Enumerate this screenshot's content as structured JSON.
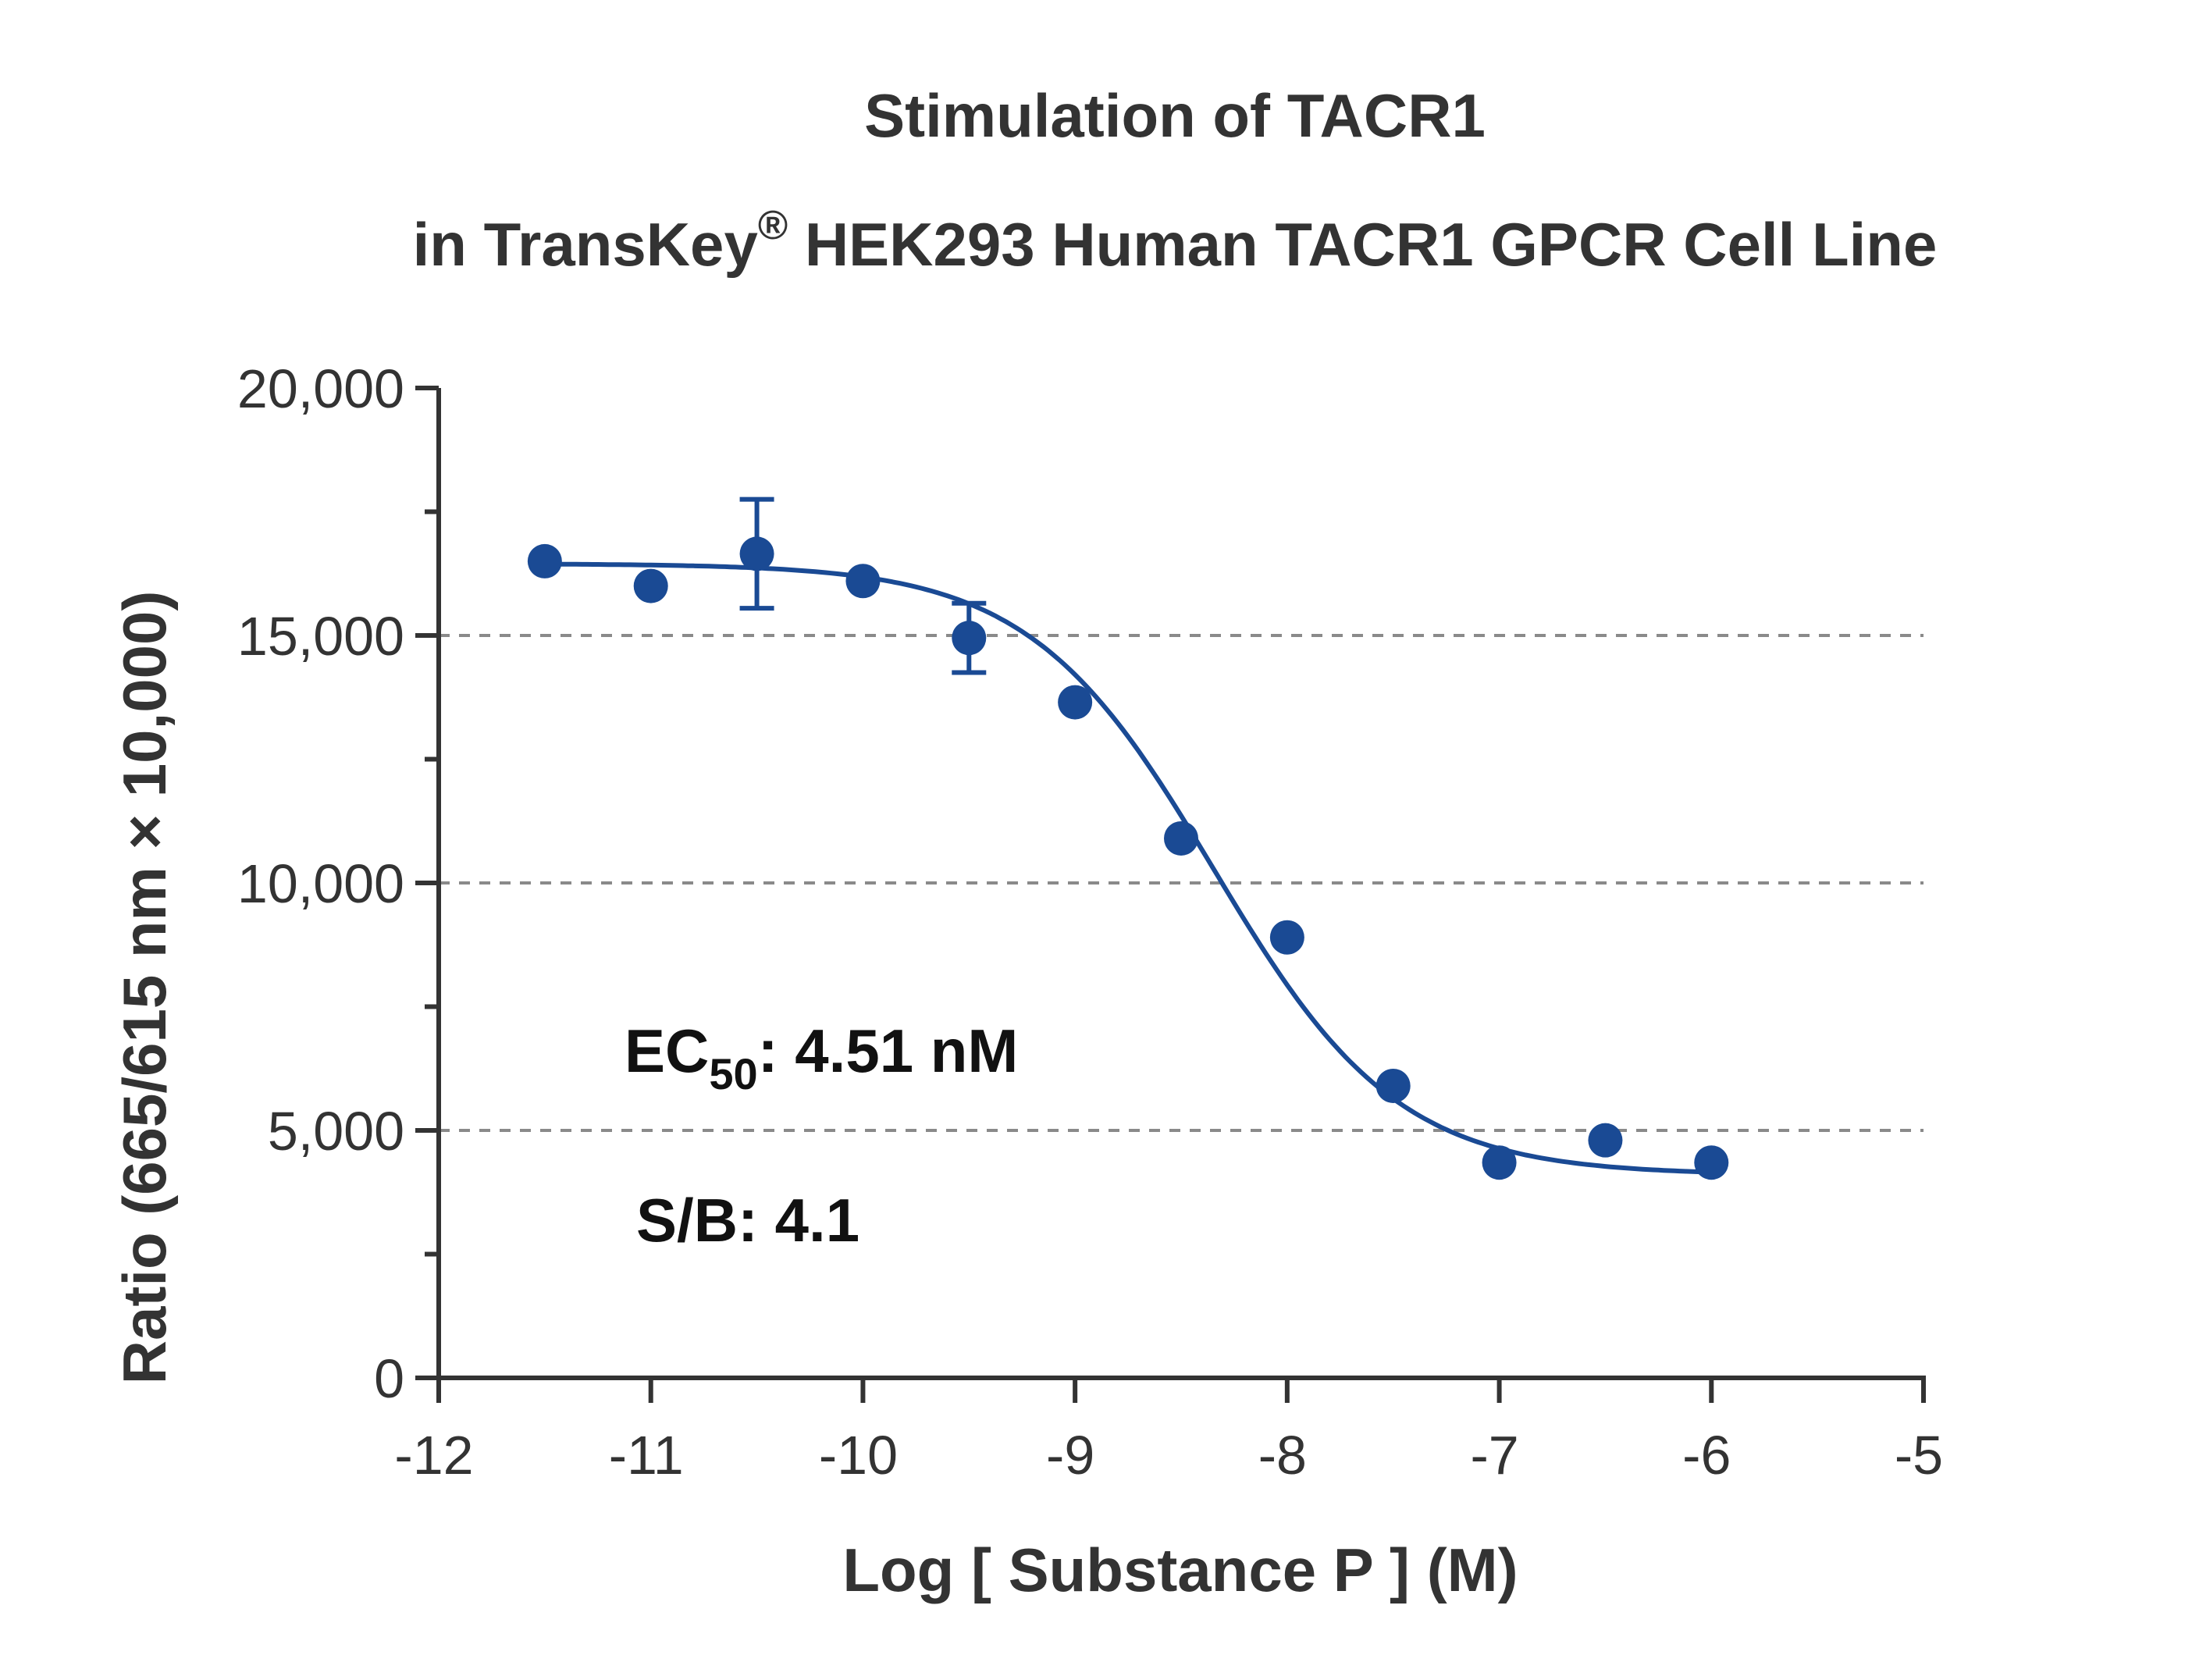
{
  "chart_data": {
    "type": "scatter",
    "title_line1": "Stimulation of  TACR1",
    "title_line2_pre": "in TransKey",
    "title_line2_sup": "®",
    "title_line2_post": " HEK293 Human TACR1 GPCR Cell Line",
    "xlabel": "Log [ Substance P ]  (M)",
    "ylabel": "Ratio (665/615 nm × 10,000)",
    "xlim": [
      -12,
      -5
    ],
    "ylim": [
      0,
      20000
    ],
    "x_ticks": [
      -12,
      -11,
      -10,
      -9,
      -8,
      -7,
      -6,
      -5
    ],
    "x_tick_labels": [
      "-12",
      "-11",
      "-10",
      "-9",
      "-8",
      "-7",
      "-6",
      "-5"
    ],
    "y_ticks": [
      0,
      5000,
      10000,
      15000,
      20000
    ],
    "y_tick_labels": [
      "0",
      "5,000",
      "10,000",
      "15,000",
      "20,000"
    ],
    "gridlines_y": [
      5000,
      10000,
      15000
    ],
    "grid": "horizontal dashed",
    "series": [
      {
        "color": "#1a4a94",
        "points": [
          {
            "x": -11.5,
            "y": 16500,
            "err": 0
          },
          {
            "x": -11.0,
            "y": 16000,
            "err": 0
          },
          {
            "x": -10.5,
            "y": 16650,
            "err": 1100
          },
          {
            "x": -10.0,
            "y": 16100,
            "err": 0
          },
          {
            "x": -9.5,
            "y": 14950,
            "err": 700
          },
          {
            "x": -9.0,
            "y": 13650,
            "err": 0
          },
          {
            "x": -8.5,
            "y": 10900,
            "err": 0
          },
          {
            "x": -8.0,
            "y": 8900,
            "err": 0
          },
          {
            "x": -7.5,
            "y": 5900,
            "err": 0
          },
          {
            "x": -7.0,
            "y": 4350,
            "err": 0
          },
          {
            "x": -6.5,
            "y": 4800,
            "err": 0
          },
          {
            "x": -6.0,
            "y": 4350,
            "err": 0
          }
        ],
        "fit": {
          "model": "4PL",
          "top": 16450,
          "bottom": 4100,
          "logEC50": -8.346,
          "hill": 1.0,
          "x_range": [
            -11.5,
            -6.0
          ]
        }
      }
    ],
    "annotations": {
      "ec50_prefix": "EC",
      "ec50_sub": "50",
      "ec50_value": ": 4.51 nM",
      "sb": "S/B: 4.1"
    }
  }
}
